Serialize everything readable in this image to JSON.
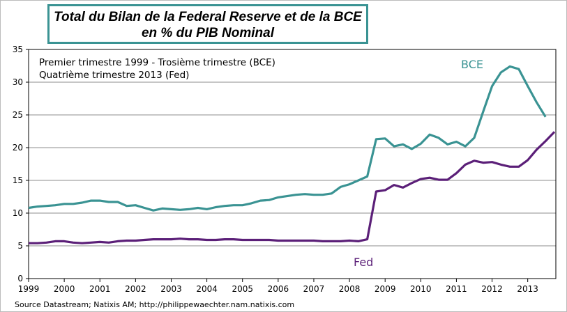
{
  "chart_data": {
    "type": "line",
    "title": [
      "Total du Bilan de la Federal Reserve et de la BCE",
      "en % du PIB Nominal"
    ],
    "annotation": [
      "Premier trimestre 1999 - Trosième trimestre (BCE)",
      "Quatrième trimestre 2013 (Fed)"
    ],
    "ylim": [
      0,
      35
    ],
    "yticks": [
      "0",
      "5",
      "10",
      "15",
      "20",
      "25",
      "30",
      "35"
    ],
    "xticks": [
      "1999",
      "2000",
      "2001",
      "2002",
      "2003",
      "2004",
      "2005",
      "2006",
      "2007",
      "2008",
      "2009",
      "2010",
      "2011",
      "2012",
      "2013"
    ],
    "x_start": "1999Q1",
    "frequency": "quarterly",
    "grid": true,
    "series": [
      {
        "name": "BCE",
        "color": "#3a9393",
        "values": [
          10.8,
          11.0,
          11.1,
          11.2,
          11.4,
          11.4,
          11.6,
          11.9,
          11.9,
          11.7,
          11.7,
          11.1,
          11.2,
          10.8,
          10.4,
          10.7,
          10.6,
          10.5,
          10.6,
          10.8,
          10.6,
          10.9,
          11.1,
          11.2,
          11.2,
          11.5,
          11.9,
          12.0,
          12.4,
          12.6,
          12.8,
          12.9,
          12.8,
          12.8,
          13.0,
          14.0,
          14.4,
          15.0,
          15.6,
          21.3,
          21.4,
          20.2,
          20.5,
          19.8,
          20.6,
          22.0,
          21.5,
          20.5,
          20.9,
          20.2,
          21.5,
          25.5,
          29.4,
          31.5,
          32.4,
          32.0,
          29.4,
          26.9,
          24.7
        ]
      },
      {
        "name": "Fed",
        "color": "#5b1f78",
        "values": [
          5.4,
          5.4,
          5.5,
          5.7,
          5.7,
          5.5,
          5.4,
          5.5,
          5.6,
          5.5,
          5.7,
          5.8,
          5.8,
          5.9,
          6.0,
          6.0,
          6.0,
          6.1,
          6.0,
          6.0,
          5.9,
          5.9,
          6.0,
          6.0,
          5.9,
          5.9,
          5.9,
          5.9,
          5.8,
          5.8,
          5.8,
          5.8,
          5.8,
          5.7,
          5.7,
          5.7,
          5.8,
          5.7,
          6.0,
          13.3,
          13.5,
          14.3,
          13.9,
          14.6,
          15.2,
          15.4,
          15.1,
          15.1,
          16.1,
          17.4,
          18.0,
          17.7,
          17.8,
          17.4,
          17.1,
          17.1,
          18.1,
          19.7,
          21.0,
          22.4
        ]
      }
    ]
  },
  "source": "Source Datastream; Natixis AM; http://philippewaechter.nam.natixis.com"
}
